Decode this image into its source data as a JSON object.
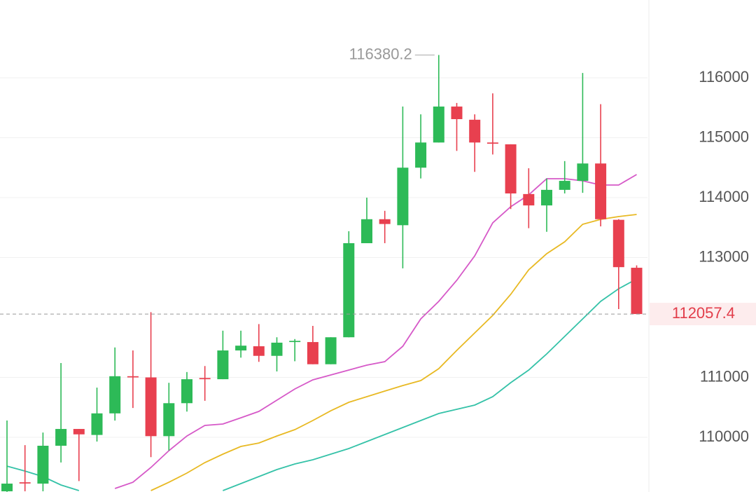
{
  "chart_data": {
    "type": "candlestick",
    "up_color": "#2dba57",
    "down_color": "#e8404f",
    "open": [
      109100,
      109250,
      109228,
      109860,
      110140,
      110040,
      110400,
      111020,
      111000,
      110020,
      110570,
      110990,
      110970,
      111450,
      111520,
      111360,
      111590,
      111590,
      111220,
      111670,
      113240,
      113640,
      113540,
      114500,
      114920,
      115520,
      115300,
      114920,
      114890,
      114060,
      113870,
      114130,
      114280,
      114570,
      113630,
      112830
    ],
    "high": [
      110281,
      109870,
      110080,
      111240,
      110140,
      110830,
      111500,
      111450,
      112090,
      110910,
      111090,
      111190,
      111780,
      111780,
      111890,
      111670,
      111640,
      111860,
      111670,
      113440,
      114000,
      113780,
      115520,
      115390,
      116380.2,
      115580,
      115390,
      115740,
      114890,
      114490,
      114320,
      114610,
      116080,
      115560,
      113640,
      112870
    ],
    "low": [
      109090,
      109100,
      109100,
      109580,
      109270,
      109930,
      110280,
      110490,
      109670,
      109780,
      110430,
      110610,
      110970,
      111330,
      111260,
      111100,
      111270,
      111220,
      111220,
      111670,
      113240,
      113240,
      112820,
      114320,
      114920,
      114780,
      114430,
      114720,
      113810,
      113490,
      113430,
      114070,
      114080,
      113520,
      112140,
      112057.4
    ],
    "close": [
      109228,
      109230,
      109860,
      110140,
      110050,
      110400,
      111020,
      111000,
      110020,
      110570,
      110970,
      110970,
      111450,
      111530,
      111360,
      111580,
      111610,
      111220,
      111670,
      113240,
      113640,
      113560,
      114500,
      114920,
      115520,
      115310,
      114920,
      114900,
      114070,
      113870,
      114130,
      114280,
      114570,
      113640,
      112840,
      112057.4
    ],
    "lines": [
      {
        "color": "#d659c8",
        "values": [
          null,
          null,
          null,
          null,
          null,
          null,
          109146,
          109251,
          109497,
          109778,
          110023,
          110199,
          110222,
          110327,
          110433,
          110620,
          110807,
          110959,
          111041,
          111123,
          111205,
          111263,
          111520,
          111977,
          112269,
          112620,
          113029,
          113579,
          113848,
          114047,
          114316,
          114316,
          114281,
          114211,
          114211,
          114386
        ]
      },
      {
        "color": "#e8b923",
        "values": [
          null,
          null,
          null,
          null,
          null,
          null,
          null,
          null,
          109111,
          109251,
          109404,
          109579,
          109719,
          109848,
          109906,
          110023,
          110129,
          110281,
          110444,
          110585,
          110678,
          110772,
          110865,
          110947,
          111146,
          111450,
          111743,
          112035,
          112386,
          112795,
          113064,
          113263,
          113556,
          113637,
          113684,
          113719
        ]
      },
      {
        "color": "#35c2a8",
        "values": [
          109520,
          109438,
          109345,
          109205,
          109111,
          null,
          null,
          null,
          null,
          null,
          null,
          null,
          109111,
          109228,
          109345,
          109462,
          109556,
          109626,
          109719,
          109813,
          109930,
          110047,
          110164,
          110281,
          110398,
          110468,
          110538,
          110678,
          110912,
          111123,
          111392,
          111684,
          111977,
          112269,
          112480,
          112643
        ]
      }
    ],
    "ylim": [
      109088,
      117298
    ],
    "yticks": [
      110000,
      111000,
      113000,
      114000,
      115000,
      116000
    ],
    "grid": true,
    "max_index": 24,
    "last_index": 35
  }
}
